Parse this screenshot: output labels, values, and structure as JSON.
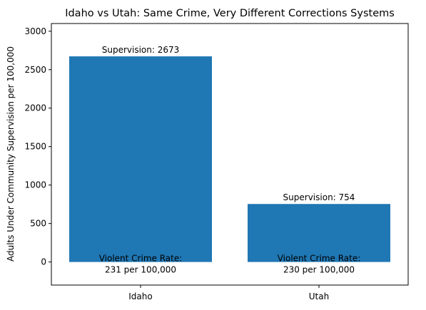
{
  "chart_data": {
    "type": "bar",
    "title": "Idaho vs Utah: Same Crime, Very Different Corrections Systems",
    "xlabel": "",
    "ylabel": "Adults Under Community Supervision per 100,000",
    "categories": [
      "Idaho",
      "Utah"
    ],
    "values": [
      2673,
      754
    ],
    "ylim": [
      -300,
      3100
    ],
    "yticks": [
      0,
      500,
      1000,
      1500,
      2000,
      2500,
      3000
    ],
    "grid": false,
    "legend": "none",
    "bar_color": "#1f77b4",
    "value_labels": [
      "Supervision: 2673",
      "Supervision: 754"
    ],
    "annotations": [
      [
        "Violent Crime Rate:",
        "231 per 100,000"
      ],
      [
        "Violent Crime Rate:",
        "230 per 100,000"
      ]
    ]
  }
}
